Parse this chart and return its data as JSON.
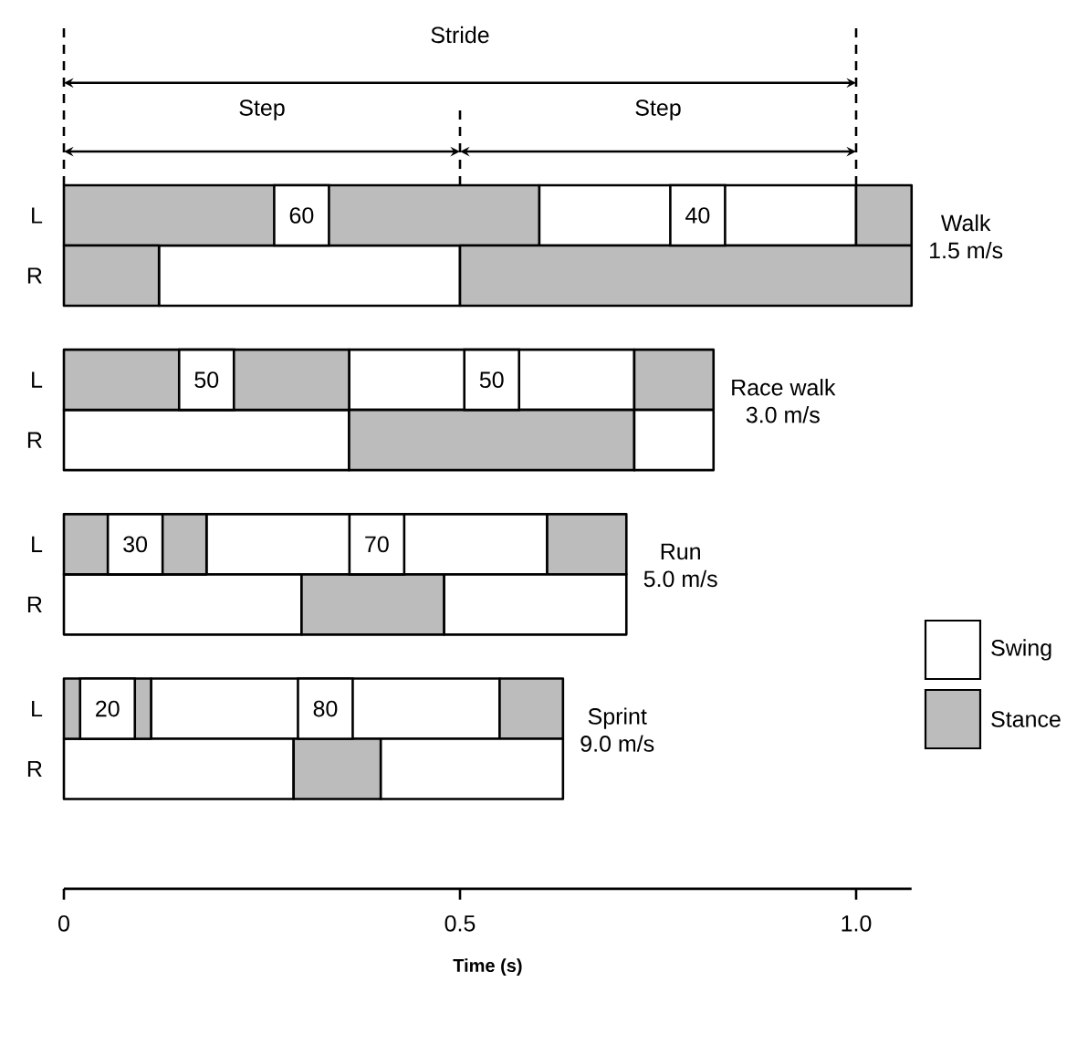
{
  "chart_data": {
    "type": "bar",
    "orientation": "horizontal",
    "xlabel": "Time (s)",
    "xlim": [
      0,
      1.07
    ],
    "xticks": [
      0,
      0.5,
      {
        "value": 1.0,
        "label": "1.0"
      }
    ],
    "legend": "right",
    "categories": [
      "L",
      "R",
      "L",
      "R",
      "L",
      "R",
      "L",
      "R"
    ],
    "series": [
      {
        "name": "Swing",
        "color": "#ffffff",
        "base": [
          0.6,
          0.12,
          0.36,
          0,
          0.18,
          0,
          0.11,
          0
        ],
        "values": [
          0.4,
          0.38,
          0.36,
          0.36,
          0.43,
          0.3,
          0.44,
          0.29
        ]
      },
      {
        "name": "Stance",
        "color": "#bcbcbc",
        "base": [
          0,
          0,
          0,
          0.36,
          0,
          0.3,
          0,
          0.29
        ],
        "values": [
          0.6,
          0.12,
          0.36,
          0.36,
          0.18,
          0.18,
          0.11,
          0.11
        ]
      },
      {
        "color": "#bcbcbc",
        "base": [
          1.0,
          0.5,
          0.72,
          null,
          0.61,
          null,
          0.55,
          null
        ],
        "values": [
          0.07,
          0.57,
          0.1,
          null,
          0.1,
          null,
          0.08,
          null
        ]
      },
      {
        "color": "#ffffff",
        "base": [
          null,
          null,
          null,
          0.72,
          null,
          0.48,
          null,
          0.4
        ],
        "values": [
          null,
          null,
          null,
          0.1,
          null,
          0.23,
          null,
          0.23
        ]
      }
    ],
    "annotations": [
      "Stride",
      "Step",
      "Step",
      "Walk",
      "1.5 m/s",
      "40",
      "60",
      "Race walk",
      "3.0 m/s",
      "50",
      "50",
      "Run",
      "5.0 m/s",
      "70",
      "30",
      "Sprint",
      "9.0 m/s",
      "80",
      "20"
    ]
  }
}
